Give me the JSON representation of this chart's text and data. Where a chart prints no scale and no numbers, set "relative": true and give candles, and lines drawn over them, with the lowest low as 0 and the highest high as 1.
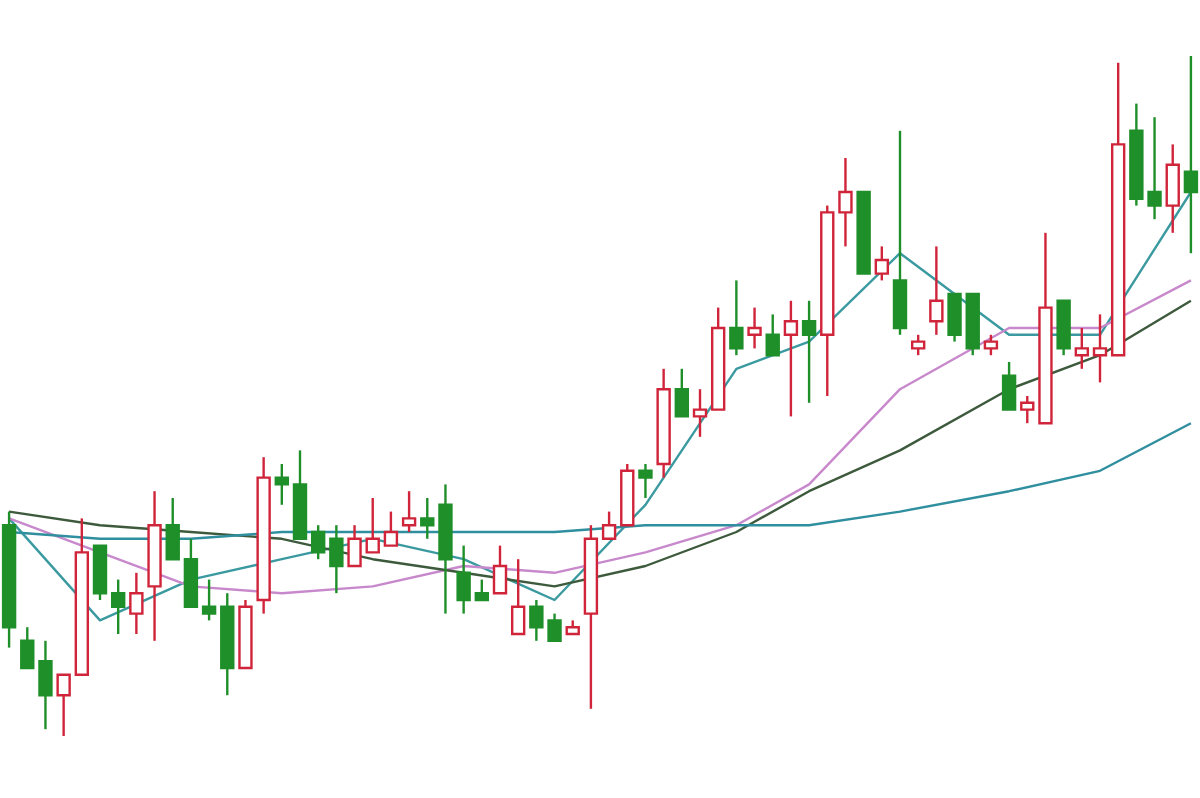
{
  "chart_data": {
    "type": "candlestick",
    "relative": true,
    "categories": [
      null,
      null,
      null,
      null,
      null,
      null,
      null,
      null,
      null,
      null,
      null,
      null,
      null,
      null,
      null,
      null,
      null,
      null,
      null,
      null,
      null,
      null,
      null,
      null,
      null,
      null,
      null,
      null,
      null,
      null,
      null,
      null,
      null,
      null,
      null,
      null,
      null,
      null,
      null,
      null,
      null,
      null,
      null,
      null,
      null,
      null,
      null,
      null,
      null,
      null,
      null,
      null,
      null,
      null,
      null,
      null,
      null,
      null,
      null,
      null,
      null,
      null,
      null,
      null,
      null,
      null
    ],
    "ohlc": [
      [
        0.31,
        0.33,
        0.13,
        0.16
      ],
      [
        0.14,
        0.16,
        0.1,
        0.1
      ],
      [
        0.11,
        0.14,
        0.01,
        0.06
      ],
      [
        0.06,
        0.09,
        0.0,
        0.09
      ],
      [
        0.09,
        0.32,
        0.09,
        0.27
      ],
      [
        0.28,
        0.28,
        0.2,
        0.21
      ],
      [
        0.21,
        0.23,
        0.15,
        0.19
      ],
      [
        0.18,
        0.24,
        0.15,
        0.21
      ],
      [
        0.22,
        0.36,
        0.14,
        0.31
      ],
      [
        0.31,
        0.35,
        0.26,
        0.26
      ],
      [
        0.26,
        0.29,
        0.19,
        0.19
      ],
      [
        0.19,
        0.23,
        0.17,
        0.18
      ],
      [
        0.19,
        0.21,
        0.06,
        0.1
      ],
      [
        0.1,
        0.2,
        0.1,
        0.19
      ],
      [
        0.2,
        0.41,
        0.18,
        0.38
      ],
      [
        0.38,
        0.4,
        0.34,
        0.37
      ],
      [
        0.37,
        0.42,
        0.29,
        0.29
      ],
      [
        0.3,
        0.31,
        0.26,
        0.27
      ],
      [
        0.29,
        0.31,
        0.21,
        0.25
      ],
      [
        0.25,
        0.31,
        0.25,
        0.29
      ],
      [
        0.27,
        0.35,
        0.27,
        0.29
      ],
      [
        0.28,
        0.33,
        0.28,
        0.3
      ],
      [
        0.31,
        0.36,
        0.3,
        0.32
      ],
      [
        0.32,
        0.35,
        0.29,
        0.31
      ],
      [
        0.34,
        0.37,
        0.18,
        0.26
      ],
      [
        0.24,
        0.28,
        0.18,
        0.2
      ],
      [
        0.21,
        0.23,
        0.2,
        0.2
      ],
      [
        0.21,
        0.28,
        0.21,
        0.25
      ],
      [
        0.15,
        0.26,
        0.15,
        0.19
      ],
      [
        0.19,
        0.2,
        0.14,
        0.16
      ],
      [
        0.17,
        0.18,
        0.14,
        0.14
      ],
      [
        0.15,
        0.17,
        0.15,
        0.16
      ],
      [
        0.18,
        0.31,
        0.04,
        0.29
      ],
      [
        0.29,
        0.33,
        0.29,
        0.31
      ],
      [
        0.31,
        0.4,
        0.31,
        0.39
      ],
      [
        0.39,
        0.4,
        0.35,
        0.38
      ],
      [
        0.4,
        0.54,
        0.38,
        0.51
      ],
      [
        0.51,
        0.54,
        0.47,
        0.47
      ],
      [
        0.47,
        0.51,
        0.44,
        0.48
      ],
      [
        0.48,
        0.63,
        0.48,
        0.6
      ],
      [
        0.6,
        0.67,
        0.56,
        0.57
      ],
      [
        0.59,
        0.63,
        0.57,
        0.6
      ],
      [
        0.59,
        0.62,
        0.56,
        0.56
      ],
      [
        0.59,
        0.64,
        0.47,
        0.61
      ],
      [
        0.61,
        0.64,
        0.49,
        0.59
      ],
      [
        0.59,
        0.78,
        0.5,
        0.77
      ],
      [
        0.77,
        0.85,
        0.72,
        0.8
      ],
      [
        0.8,
        0.8,
        0.68,
        0.68
      ],
      [
        0.68,
        0.72,
        0.67,
        0.7
      ],
      [
        0.67,
        0.89,
        0.59,
        0.6
      ],
      [
        0.57,
        0.59,
        0.56,
        0.58
      ],
      [
        0.61,
        0.72,
        0.59,
        0.64
      ],
      [
        0.65,
        0.65,
        0.58,
        0.59
      ],
      [
        0.65,
        0.65,
        0.56,
        0.57
      ],
      [
        0.57,
        0.59,
        0.56,
        0.58
      ],
      [
        0.53,
        0.55,
        0.48,
        0.48
      ],
      [
        0.48,
        0.5,
        0.46,
        0.49
      ],
      [
        0.46,
        0.74,
        0.46,
        0.63
      ],
      [
        0.64,
        0.64,
        0.56,
        0.57
      ],
      [
        0.56,
        0.6,
        0.54,
        0.57
      ],
      [
        0.56,
        0.62,
        0.52,
        0.57
      ],
      [
        0.56,
        0.99,
        0.56,
        0.87
      ],
      [
        0.89,
        0.93,
        0.78,
        0.79
      ],
      [
        0.8,
        0.91,
        0.76,
        0.78
      ],
      [
        0.78,
        0.87,
        0.74,
        0.84
      ],
      [
        0.83,
        1.0,
        0.71,
        0.8
      ]
    ],
    "colors": [
      "#1f8f2a",
      "#1f8f2a",
      "#1f8f2a",
      "#d0243a",
      "#d0243a",
      "#1f8f2a",
      "#1f8f2a",
      "#d0243a",
      "#d0243a",
      "#1f8f2a",
      "#1f8f2a",
      "#1f8f2a",
      "#1f8f2a",
      "#d0243a",
      "#d0243a",
      "#1f8f2a",
      "#1f8f2a",
      "#1f8f2a",
      "#1f8f2a",
      "#d0243a",
      "#d0243a",
      "#d0243a",
      "#d0243a",
      "#1f8f2a",
      "#1f8f2a",
      "#1f8f2a",
      "#1f8f2a",
      "#d0243a",
      "#d0243a",
      "#1f8f2a",
      "#1f8f2a",
      "#d0243a",
      "#d0243a",
      "#d0243a",
      "#d0243a",
      "#1f8f2a",
      "#d0243a",
      "#1f8f2a",
      "#d0243a",
      "#d0243a",
      "#1f8f2a",
      "#d0243a",
      "#1f8f2a",
      "#d0243a",
      "#1f8f2a",
      "#d0243a",
      "#d0243a",
      "#1f8f2a",
      "#d0243a",
      "#1f8f2a",
      "#d0243a",
      "#d0243a",
      "#1f8f2a",
      "#1f8f2a",
      "#d0243a",
      "#1f8f2a",
      "#d0243a",
      "#d0243a",
      "#1f8f2a",
      "#d0243a",
      "#d0243a",
      "#d0243a",
      "#1f8f2a",
      "#1f8f2a",
      "#d0243a",
      "#1f8f2a"
    ],
    "series": [
      {
        "type": "line",
        "color": "#3a9aa0",
        "values": [
          0.32,
          null,
          null,
          null,
          null,
          0.17,
          null,
          null,
          null,
          null,
          0.23,
          null,
          null,
          null,
          null,
          0.26,
          null,
          null,
          null,
          null,
          0.29,
          null,
          null,
          null,
          null,
          0.26,
          null,
          null,
          null,
          null,
          0.2,
          null,
          null,
          null,
          null,
          0.34,
          null,
          null,
          null,
          null,
          0.54,
          null,
          null,
          null,
          0.58,
          null,
          null,
          null,
          null,
          0.71,
          null,
          null,
          null,
          null,
          null,
          0.59,
          null,
          null,
          null,
          null,
          0.59,
          null,
          null,
          null,
          null,
          0.8
        ]
      },
      {
        "type": "line",
        "color": "#c888cc",
        "values": [
          0.32,
          null,
          null,
          null,
          null,
          0.27,
          null,
          null,
          null,
          null,
          0.22,
          null,
          null,
          null,
          null,
          0.21,
          null,
          null,
          null,
          null,
          0.22,
          null,
          null,
          null,
          null,
          0.25,
          null,
          null,
          null,
          null,
          0.24,
          null,
          null,
          null,
          null,
          0.27,
          null,
          null,
          null,
          null,
          0.31,
          null,
          null,
          null,
          0.37,
          null,
          null,
          null,
          null,
          0.51,
          null,
          null,
          null,
          null,
          null,
          0.6,
          null,
          null,
          null,
          null,
          0.6,
          null,
          null,
          null,
          null,
          0.67
        ]
      },
      {
        "type": "line",
        "color": "#3d5a3d",
        "values": [
          0.33,
          null,
          null,
          null,
          null,
          0.31,
          null,
          null,
          null,
          null,
          0.3,
          null,
          null,
          null,
          null,
          0.29,
          null,
          null,
          null,
          null,
          0.26,
          null,
          null,
          null,
          null,
          0.24,
          null,
          null,
          null,
          null,
          0.22,
          null,
          null,
          null,
          null,
          0.25,
          null,
          null,
          null,
          null,
          0.3,
          null,
          null,
          null,
          0.36,
          null,
          null,
          null,
          null,
          0.42,
          null,
          null,
          null,
          null,
          null,
          0.51,
          null,
          null,
          null,
          null,
          0.56,
          null,
          null,
          null,
          null,
          0.64
        ]
      },
      {
        "type": "line",
        "color": "#2f8f9f",
        "values": [
          0.3,
          null,
          null,
          null,
          null,
          0.29,
          null,
          null,
          null,
          null,
          0.29,
          null,
          null,
          null,
          null,
          0.3,
          null,
          null,
          null,
          null,
          0.3,
          null,
          null,
          null,
          null,
          0.3,
          null,
          null,
          null,
          null,
          0.3,
          null,
          null,
          null,
          null,
          0.31,
          null,
          null,
          null,
          null,
          0.31,
          null,
          null,
          null,
          0.31,
          null,
          null,
          null,
          null,
          0.33,
          null,
          null,
          null,
          null,
          null,
          0.36,
          null,
          null,
          null,
          null,
          0.39,
          null,
          null,
          null,
          null,
          0.46
        ]
      }
    ]
  }
}
